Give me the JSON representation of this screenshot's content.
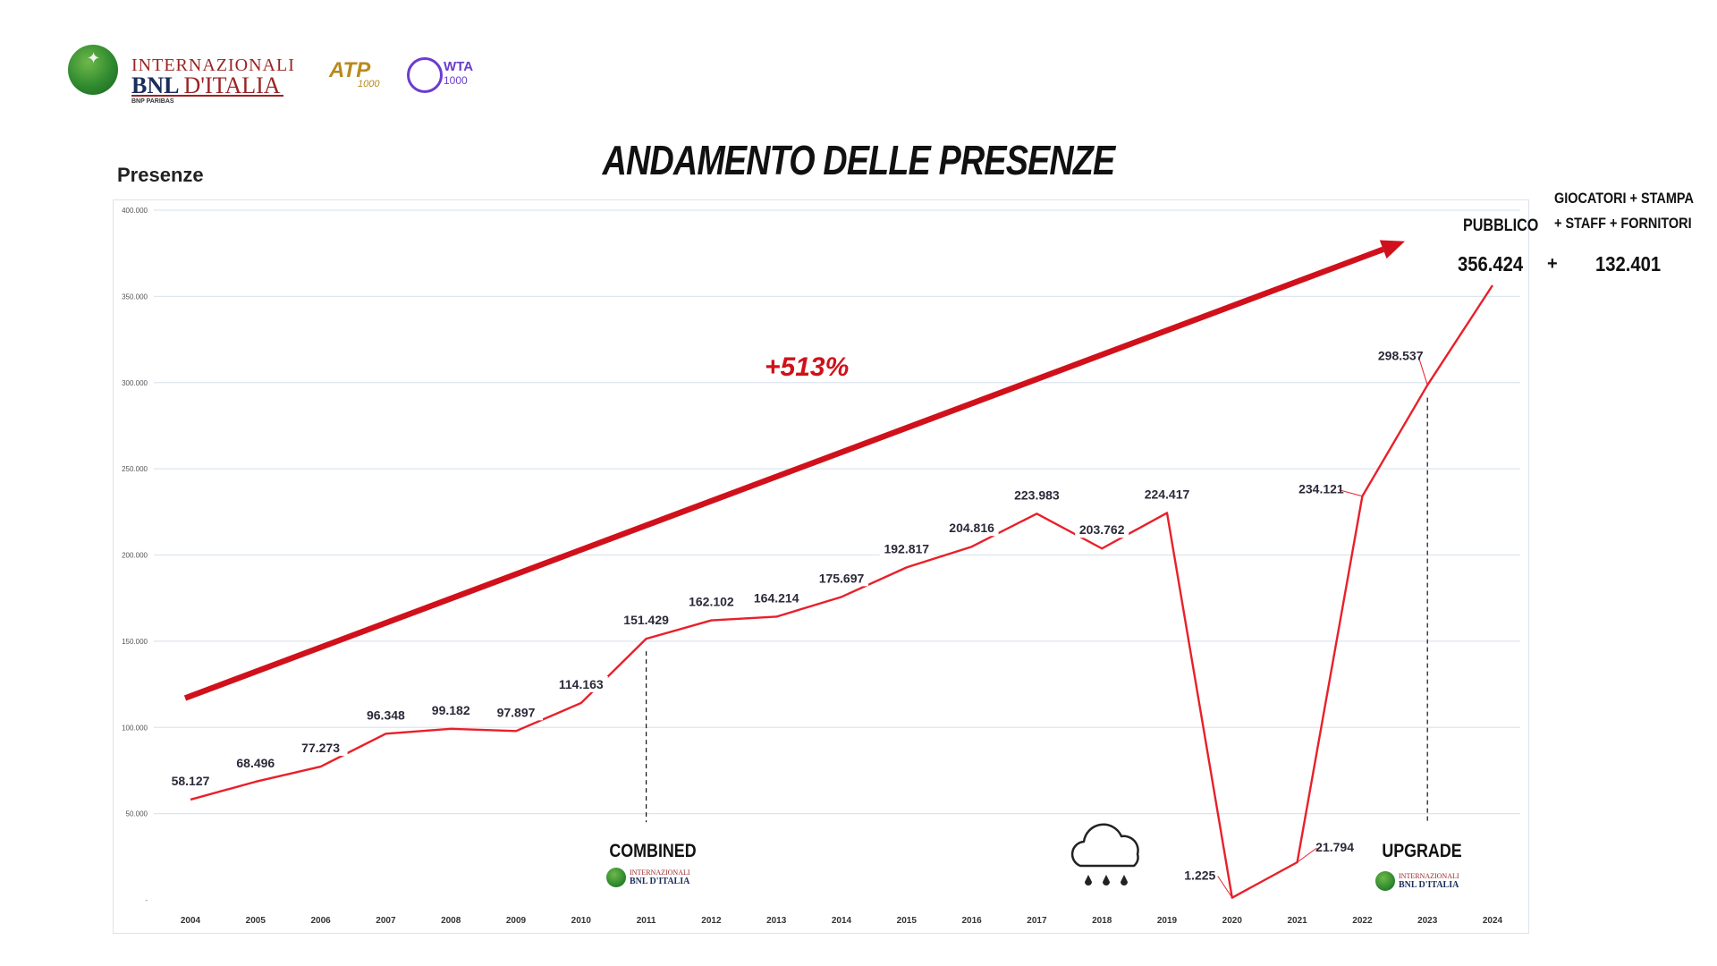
{
  "header": {
    "logo_line1": "INTERNAZIONALI",
    "logo_line2_a": "BNL",
    "logo_line2_b": "D'ITALIA",
    "logo_line3": "BNP PARIBAS",
    "atp_text": "ATP",
    "atp_sub": "1000",
    "wta_text": "WTA",
    "wta_sub": "1000"
  },
  "chart_data": {
    "type": "line",
    "title": "ANDAMENTO DELLE PRESENZE",
    "ylabel": "Presenze",
    "xlabel": "",
    "categories": [
      "2004",
      "2005",
      "2006",
      "2007",
      "2008",
      "2009",
      "2010",
      "2011",
      "2012",
      "2013",
      "2014",
      "2015",
      "2016",
      "2017",
      "2018",
      "2019",
      "2020",
      "2021",
      "2022",
      "2023",
      "2024"
    ],
    "values": [
      58127,
      68496,
      77273,
      96348,
      99182,
      97897,
      114163,
      151429,
      162102,
      164214,
      175697,
      192817,
      204816,
      223983,
      203762,
      224417,
      1225,
      21794,
      234121,
      298537,
      356424
    ],
    "labels": [
      "58.127",
      "68.496",
      "77.273",
      "96.348",
      "99.182",
      "97.897",
      "114.163",
      "151.429",
      "162.102",
      "164.214",
      "175.697",
      "192.817",
      "204.816",
      "223.983",
      "203.762",
      "224.417",
      "1.225",
      "21.794",
      "234.121",
      "298.537",
      ""
    ],
    "yticks": [
      0,
      50000,
      100000,
      150000,
      200000,
      250000,
      300000,
      350000,
      400000
    ],
    "ytick_labels": [
      "-",
      "50.000",
      "100.000",
      "150.000",
      "200.000",
      "250.000",
      "300.000",
      "350.000",
      "400.000"
    ],
    "ylim": [
      0,
      400000
    ],
    "grid": true,
    "line_color": "#e8202a",
    "trend_arrow": {
      "from": [
        "2004",
        117000
      ],
      "to": [
        "2024",
        382000
      ],
      "color": "#d0111b",
      "label": "+513%"
    },
    "reference_lines": [
      "2011",
      "2023"
    ],
    "annotations": {
      "combined": "COMBINED",
      "upgrade": "UPGRADE",
      "weather_icon": "cloud-rain-icon",
      "pubblico_label": "PUBBLICO",
      "pubblico_value": "356.424",
      "plus_sign": "+",
      "extra_label_line1": "GIOCATORI + STAMPA",
      "extra_label_line2": "+ STAFF + FORNITORI",
      "extra_value": "132.401"
    }
  }
}
